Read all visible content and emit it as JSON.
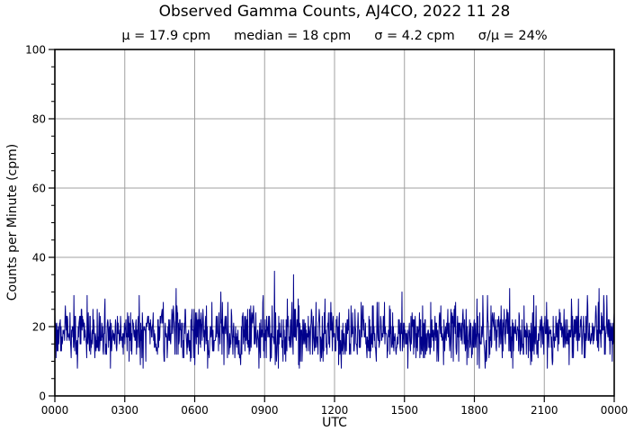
{
  "chart_data": {
    "type": "line",
    "title": "Observed Gamma Counts, AJ4CO, 2022 11 28",
    "subtitle_parts": [
      "μ = 17.9 cpm",
      "median = 18 cpm",
      "σ = 4.2 cpm",
      "σ/μ = 24%"
    ],
    "stats": {
      "mean_cpm": 17.9,
      "median_cpm": 18,
      "sigma_cpm": 4.2,
      "sigma_over_mean_pct": 24
    },
    "xlabel": "UTC",
    "ylabel": "Counts per Minute (cpm)",
    "x_range_minutes": [
      0,
      1440
    ],
    "ylim": [
      0,
      100
    ],
    "x_tick_labels": [
      "0000",
      "0300",
      "0600",
      "0900",
      "1200",
      "1500",
      "1800",
      "2100",
      "0000"
    ],
    "x_tick_minutes": [
      0,
      180,
      360,
      540,
      720,
      900,
      1080,
      1260,
      1440
    ],
    "y_ticks": [
      0,
      20,
      40,
      60,
      80,
      100
    ],
    "y_minor_step": 5,
    "grid": {
      "show": true,
      "color": "#a0a0a0"
    },
    "axis_color": "#000000",
    "line_color": "#00008B",
    "series": {
      "name": "observed gamma counts",
      "n_points": 1440,
      "interval_minutes": 1,
      "mean": 17.9,
      "median": 18,
      "sigma": 4.2,
      "seed": 20221128,
      "clamp_range": [
        8,
        29
      ],
      "notable_peaks": [
        {
          "utc": "0512",
          "minute": 312,
          "value": 31
        },
        {
          "utc": "0707",
          "minute": 427,
          "value": 30
        },
        {
          "utc": "0925",
          "minute": 565,
          "value": 36
        },
        {
          "utc": "1014",
          "minute": 614,
          "value": 35
        },
        {
          "utc": "1453",
          "minute": 893,
          "value": 30
        },
        {
          "utc": "1930",
          "minute": 1170,
          "value": 31
        },
        {
          "utc": "2320",
          "minute": 1400,
          "value": 31
        }
      ],
      "notable_dips": [
        {
          "utc": "0600",
          "minute": 360,
          "value": 9
        },
        {
          "utc": "0935",
          "minute": 575,
          "value": 8
        },
        {
          "utc": "1640",
          "minute": 1000,
          "value": 9
        }
      ]
    }
  }
}
